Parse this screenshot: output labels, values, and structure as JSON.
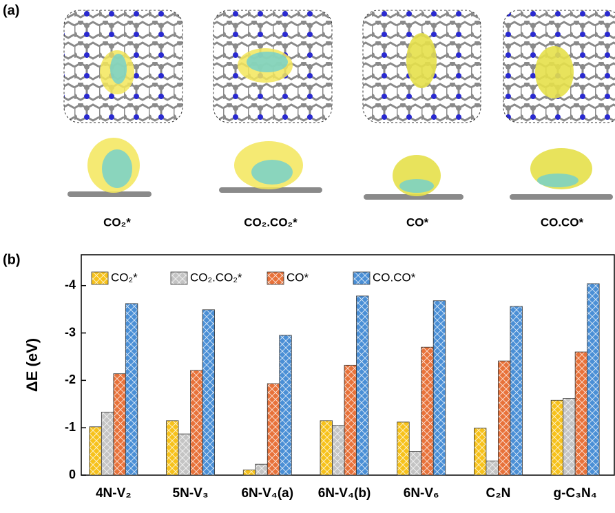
{
  "panel_labels": [
    "(a)",
    "(b)"
  ],
  "structures": [
    "CO₂*",
    "CO₂.CO₂*",
    "CO*",
    "CO.CO*"
  ],
  "chart_data": {
    "type": "bar",
    "ylabel": "ΔE (eV)",
    "categories": [
      "4N-V₂",
      "5N-V₃",
      "6N-V₄(a)",
      "6N-V₄(b)",
      "6N-V₆",
      "C₂N",
      "g-C₃N₄"
    ],
    "series": [
      {
        "name": "CO₂*",
        "color": "#f7c21b",
        "values": [
          -1.02,
          -1.15,
          -0.11,
          -1.15,
          -1.12,
          -0.99,
          -1.58
        ]
      },
      {
        "name": "CO₂.CO₂*",
        "color": "#c4c4c4",
        "values": [
          -1.33,
          -0.87,
          -0.23,
          -1.05,
          -0.5,
          -0.3,
          -1.62
        ]
      },
      {
        "name": "CO*",
        "color": "#e8723a",
        "values": [
          -2.14,
          -2.21,
          -1.93,
          -2.32,
          -2.7,
          -2.41,
          -2.6
        ]
      },
      {
        "name": "CO.CO*",
        "color": "#4a8fd6",
        "values": [
          -3.62,
          -3.49,
          -2.95,
          -3.78,
          -3.68,
          -3.56,
          -4.04
        ]
      }
    ],
    "ylim": [
      0,
      -4.65
    ],
    "yticks": [
      0,
      -1,
      -2,
      -3,
      -4
    ],
    "legend": "top-left"
  }
}
